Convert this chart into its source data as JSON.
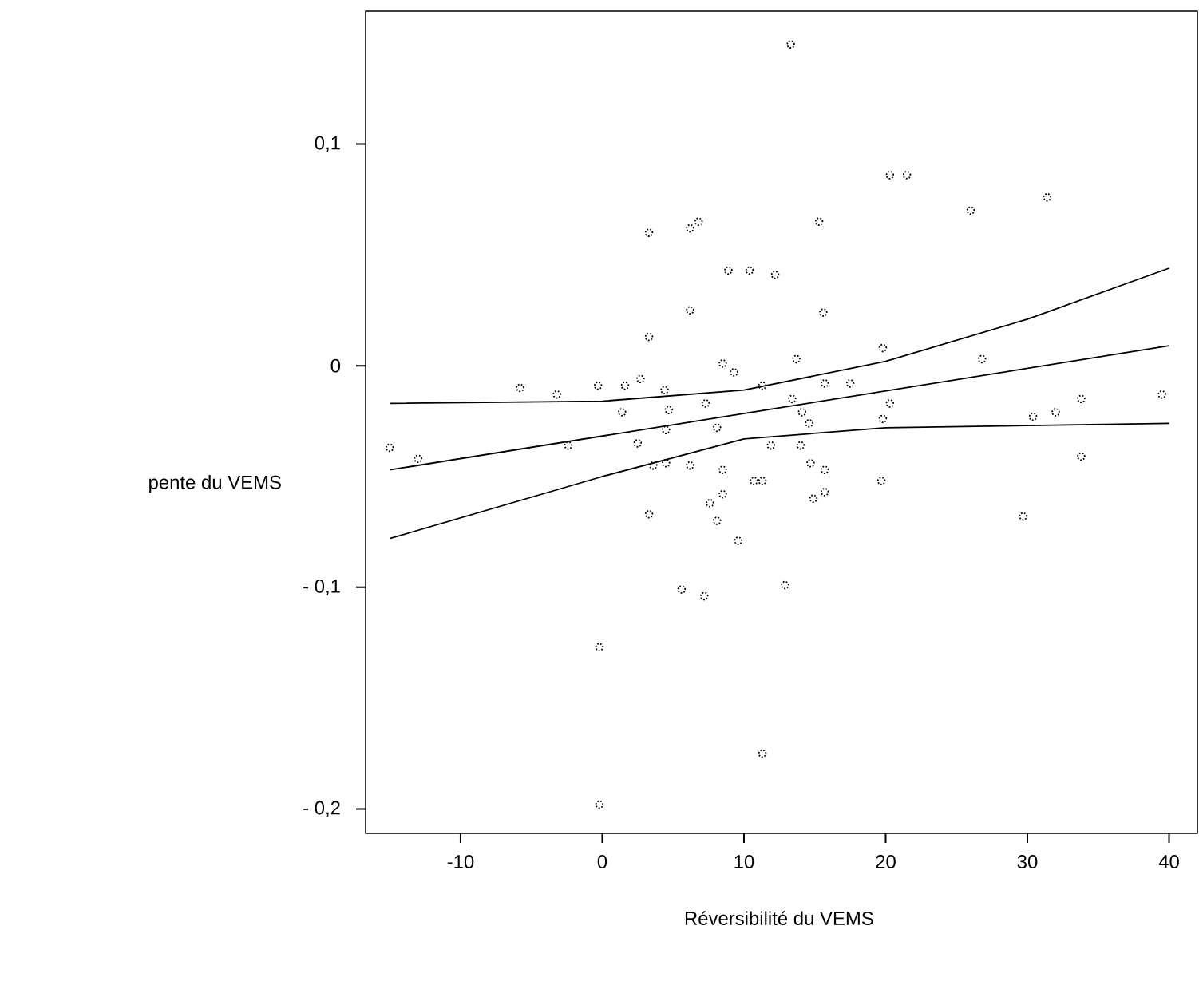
{
  "chart_data": {
    "type": "scatter",
    "xlabel": "Réversibilité du VEMS",
    "ylabel": "pente du VEMS",
    "xlim": [
      -16.7,
      42
    ],
    "ylim": [
      -0.211,
      0.16
    ],
    "xticks": [
      -10,
      0,
      10,
      20,
      30,
      40
    ],
    "yticks": [
      {
        "value": -0.2,
        "label": "- 0,2"
      },
      {
        "value": -0.1,
        "label": "- 0,1"
      },
      {
        "value": 0,
        "label": "0"
      },
      {
        "value": 0.1,
        "label": "0,1"
      }
    ],
    "grid": false,
    "series": [
      {
        "marker": "circle",
        "color": "#000000",
        "x": [
          13.3,
          20.3,
          21.5,
          26.0,
          31.4,
          15.3,
          8.9,
          10.4,
          12.2,
          3.3,
          6.2,
          6.8,
          6.2,
          3.3,
          15.6,
          13.7,
          19.8,
          26.8,
          33.8,
          39.5,
          30.4,
          32.0,
          20.3,
          19.8,
          15.7,
          17.5,
          11.3,
          13.4,
          14.1,
          14.6,
          -5.8,
          -3.2,
          -0.3,
          1.6,
          2.7,
          4.4,
          8.5,
          9.3,
          4.7,
          7.3,
          1.4,
          8.1,
          4.5,
          -15.0,
          -13.0,
          -2.4,
          2.5,
          3.6,
          4.5,
          6.2,
          8.5,
          8.5,
          7.6,
          8.1,
          3.3,
          9.6,
          10.7,
          5.6,
          7.2,
          -0.2,
          -0.2,
          11.3,
          11.9,
          14.0,
          14.7,
          15.7,
          11.3,
          14.9,
          15.7,
          19.7,
          33.8,
          29.7,
          12.9
        ],
        "values": [
          0.145,
          0.086,
          0.086,
          0.07,
          0.076,
          0.065,
          0.043,
          0.043,
          0.041,
          0.06,
          0.062,
          0.065,
          0.025,
          0.013,
          0.024,
          0.003,
          0.008,
          0.003,
          -0.015,
          -0.013,
          -0.023,
          -0.021,
          -0.017,
          -0.024,
          -0.008,
          -0.008,
          -0.009,
          -0.015,
          -0.021,
          -0.026,
          -0.01,
          -0.013,
          -0.009,
          -0.009,
          -0.006,
          -0.011,
          0.001,
          -0.003,
          -0.02,
          -0.017,
          -0.021,
          -0.028,
          -0.029,
          -0.037,
          -0.042,
          -0.036,
          -0.035,
          -0.045,
          -0.044,
          -0.045,
          -0.047,
          -0.058,
          -0.062,
          -0.07,
          -0.067,
          -0.079,
          -0.052,
          -0.101,
          -0.104,
          -0.127,
          -0.198,
          -0.175,
          -0.036,
          -0.036,
          -0.044,
          -0.047,
          -0.052,
          -0.06,
          -0.057,
          -0.052,
          -0.041,
          -0.068,
          -0.099
        ]
      },
      {
        "type": "line",
        "marker": "none",
        "color": "#000000",
        "x": [
          -15,
          40
        ],
        "values": [
          -0.047,
          0.009
        ]
      },
      {
        "type": "line",
        "marker": "none",
        "color": "#000000",
        "x": [
          -15,
          0,
          10,
          20,
          30,
          40
        ],
        "values": [
          -0.017,
          -0.016,
          -0.011,
          0.002,
          0.021,
          0.044
        ]
      },
      {
        "type": "line",
        "marker": "none",
        "color": "#000000",
        "x": [
          -15,
          0,
          10,
          20,
          30,
          40
        ],
        "values": [
          -0.078,
          -0.05,
          -0.033,
          -0.028,
          -0.027,
          -0.026
        ]
      }
    ]
  }
}
